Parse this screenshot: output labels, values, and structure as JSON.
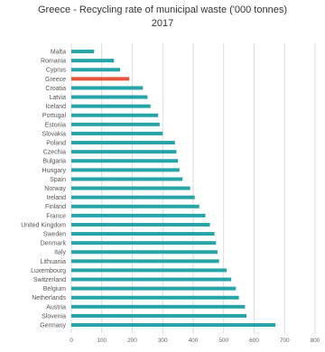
{
  "chart_data": {
    "type": "bar",
    "orientation": "horizontal",
    "title": "Greece - Recycling rate of municipal waste ('000 tonnes)",
    "subtitle": "2017",
    "categories": [
      "Malta",
      "Romania",
      "Cyprus",
      "Greece",
      "Croatia",
      "Latvia",
      "Iceland",
      "Portugal",
      "Estonia",
      "Slovakia",
      "Poland",
      "Czechia",
      "Bulgaria",
      "Hungary",
      "Spain",
      "Norway",
      "Ireland",
      "Finland",
      "France",
      "United Kingdom",
      "Sweden",
      "Denmark",
      "Italy",
      "Lithuania",
      "Luxembourg",
      "Switzerland",
      "Belgium",
      "Netherlands",
      "Austria",
      "Slovenia",
      "Germany"
    ],
    "values": [
      75,
      140,
      160,
      190,
      235,
      250,
      260,
      285,
      290,
      300,
      340,
      345,
      350,
      355,
      365,
      390,
      405,
      420,
      440,
      455,
      470,
      475,
      480,
      485,
      510,
      525,
      540,
      550,
      570,
      575,
      670
    ],
    "highlight_category": "Greece",
    "xlim": [
      0,
      800
    ],
    "xticks": [
      0,
      100,
      200,
      300,
      400,
      500,
      600,
      700,
      800
    ],
    "xtick_labels": [
      "0",
      "100",
      "200",
      "300",
      "400",
      "500",
      "600",
      "700",
      "800"
    ],
    "grid": "vertical",
    "legend": "none",
    "colors": {
      "bar": "#27a4a8",
      "highlight": "#e8543a",
      "grid": "#d6d6d6"
    }
  }
}
